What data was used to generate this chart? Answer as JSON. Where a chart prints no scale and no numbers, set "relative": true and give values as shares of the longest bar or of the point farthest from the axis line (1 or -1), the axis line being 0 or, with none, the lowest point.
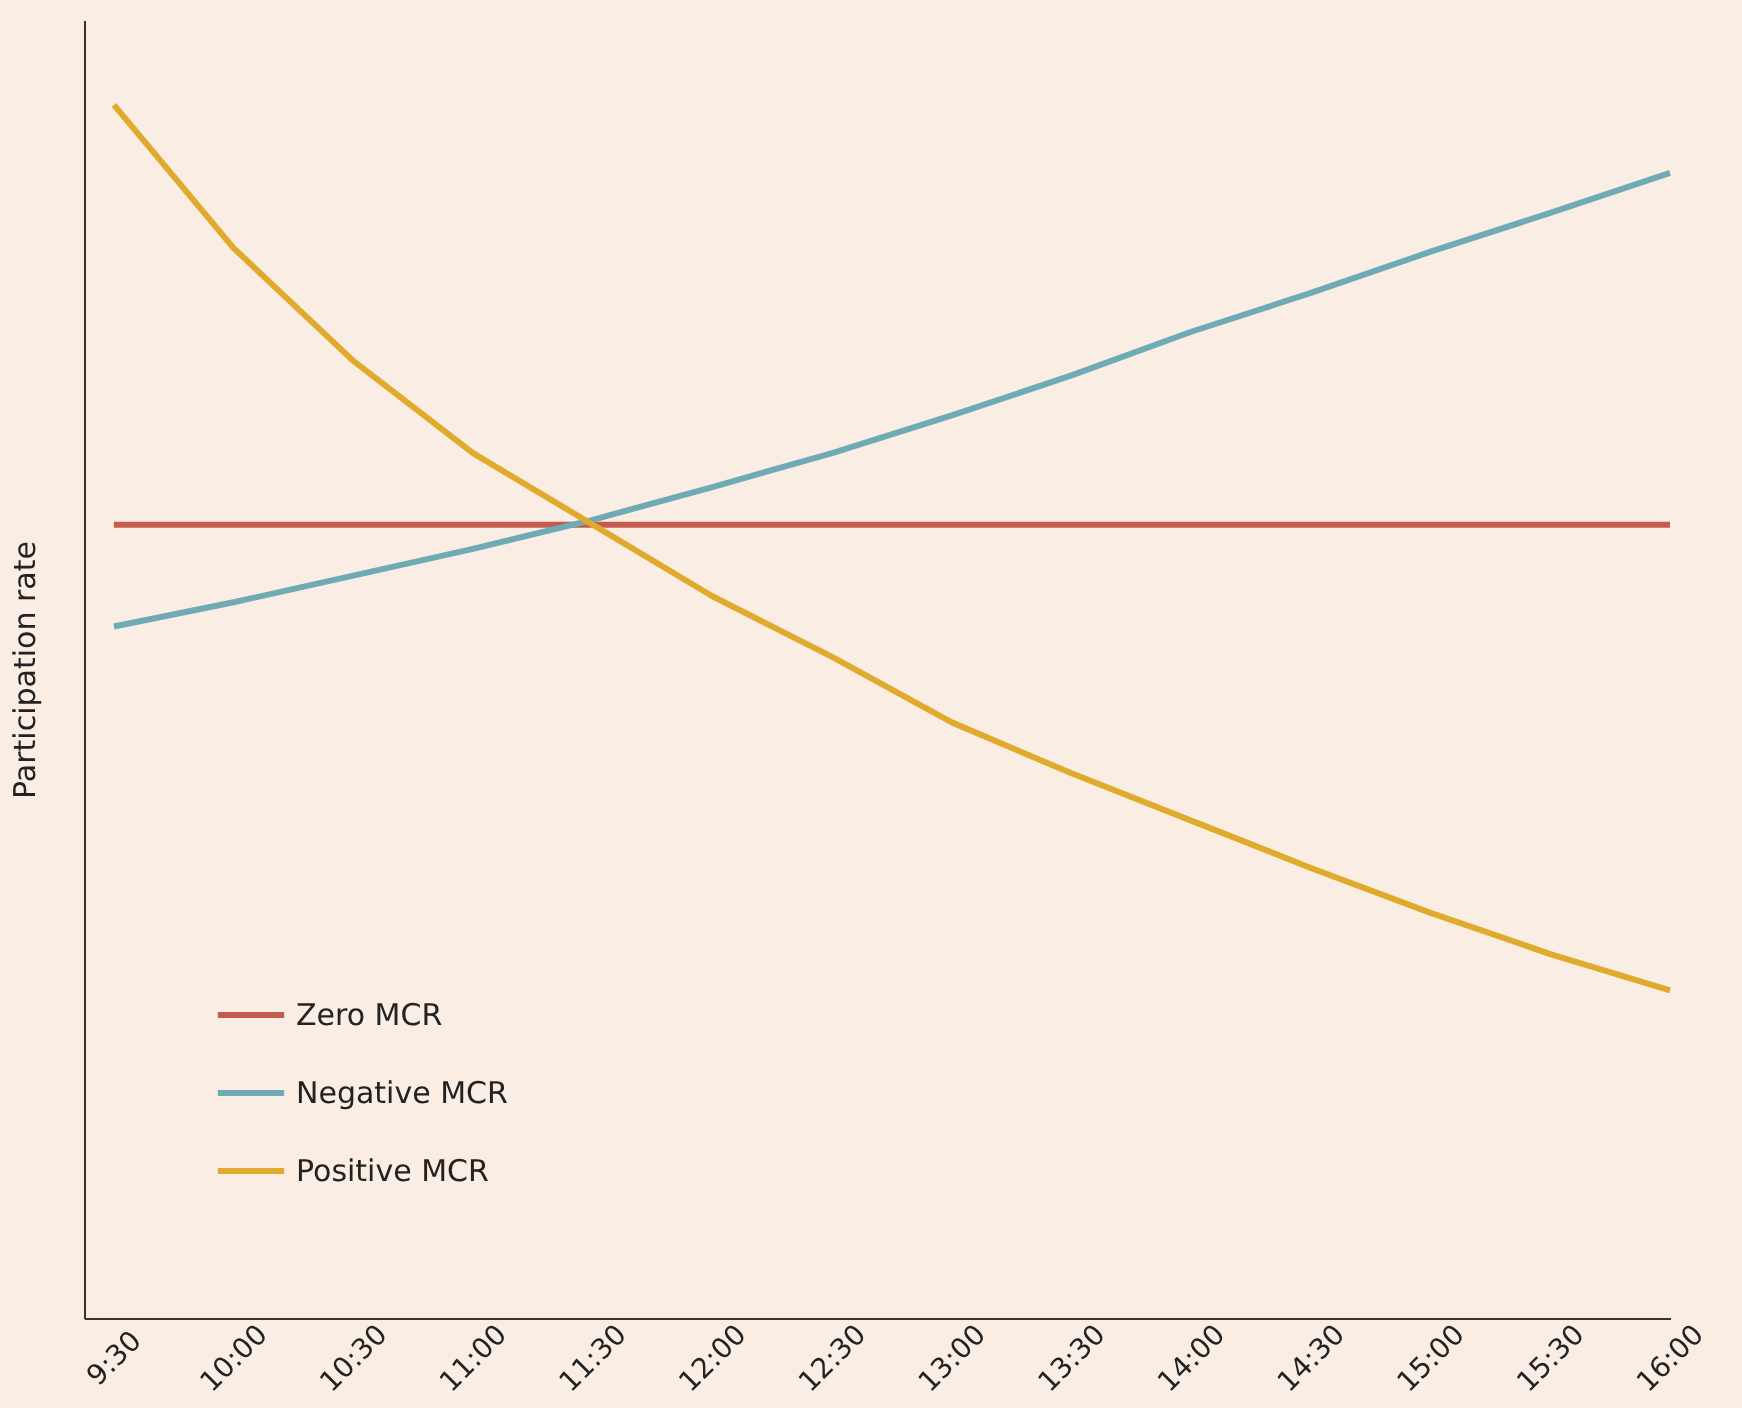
{
  "chart_data": {
    "type": "line",
    "ylabel": "Participation rate",
    "relative": true,
    "x": [
      9.5,
      10,
      10.5,
      11,
      11.5,
      12,
      12.5,
      13,
      13.5,
      14,
      14.5,
      15,
      15.5,
      16
    ],
    "xlim": [
      9.375,
      16
    ],
    "xticks": [
      {
        "value": 9.5,
        "label": "9:30"
      },
      {
        "value": 10,
        "label": "10:00"
      },
      {
        "value": 10.5,
        "label": "10:30"
      },
      {
        "value": 11,
        "label": "11:00"
      },
      {
        "value": 11.5,
        "label": "11:30"
      },
      {
        "value": 12,
        "label": "12:00"
      },
      {
        "value": 12.5,
        "label": "12:30"
      },
      {
        "value": 13,
        "label": "13:00"
      },
      {
        "value": 13.5,
        "label": "13:30"
      },
      {
        "value": 14,
        "label": "14:00"
      },
      {
        "value": 14.5,
        "label": "14:30"
      },
      {
        "value": 15,
        "label": "15:00"
      },
      {
        "value": 15.5,
        "label": "15:30"
      },
      {
        "value": 16,
        "label": "16:00"
      }
    ],
    "series": [
      {
        "name": "Zero MCR",
        "color": "#c55a4f",
        "x": [
          9.5,
          16
        ],
        "values": [
          0.654,
          0.654
        ]
      },
      {
        "name": "Negative MCR",
        "color": "#6fabb5",
        "values": [
          0.57,
          0.59,
          0.612,
          0.634,
          0.658,
          0.685,
          0.713,
          0.744,
          0.777,
          0.813,
          0.845,
          0.879,
          0.911,
          0.944
        ]
      },
      {
        "name": "Positive MCR",
        "color": "#e0aa2c",
        "values": [
          1.0,
          0.882,
          0.789,
          0.713,
          0.654,
          0.595,
          0.545,
          0.491,
          0.449,
          0.41,
          0.371,
          0.334,
          0.3,
          0.27
        ]
      }
    ],
    "legend": "bottom left",
    "grid": false,
    "marker": "none",
    "line_style": "solid"
  }
}
